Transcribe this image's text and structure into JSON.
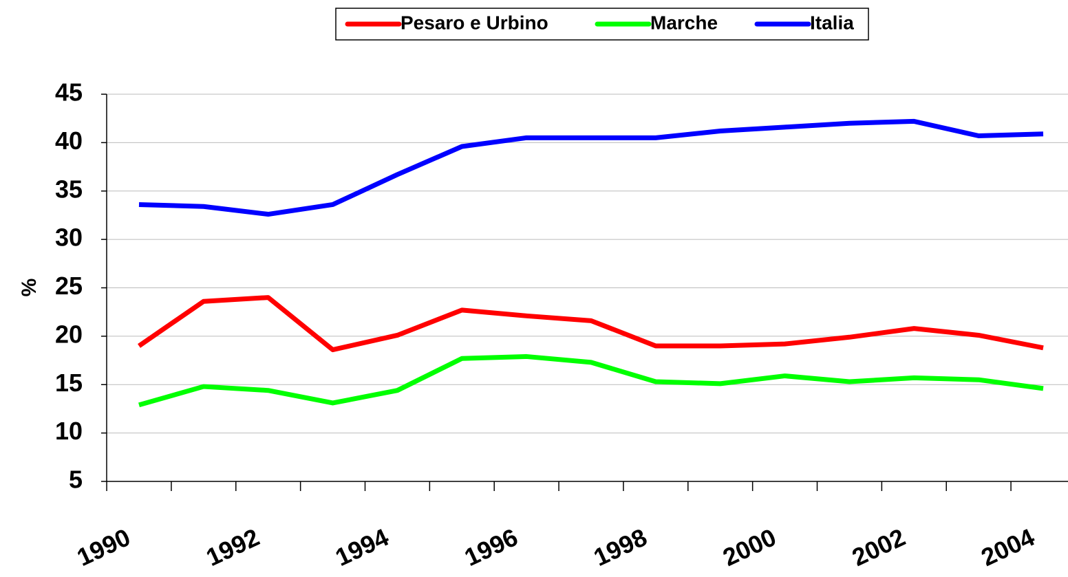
{
  "chart_data": {
    "type": "line",
    "categories": [
      "1990",
      null,
      "1992",
      null,
      "1994",
      null,
      "1996",
      null,
      "1998",
      null,
      "2000",
      null,
      "2002",
      null,
      "2004"
    ],
    "y_label": "%",
    "ylim": [
      5,
      45
    ],
    "yticks": [
      5,
      10,
      15,
      20,
      25,
      30,
      35,
      40,
      45
    ],
    "grid": true,
    "legend": "top",
    "series": [
      {
        "name": "Pesaro e Urbino",
        "color": "#ff0000",
        "values": [
          19.0,
          23.6,
          24.0,
          18.6,
          20.1,
          22.7,
          22.1,
          21.6,
          19.0,
          19.0,
          19.2,
          19.9,
          20.8,
          20.1,
          18.8
        ]
      },
      {
        "name": "Marche",
        "color": "#00ff00",
        "values": [
          12.9,
          14.8,
          14.4,
          13.1,
          14.4,
          17.7,
          17.9,
          17.3,
          15.3,
          15.1,
          15.9,
          15.3,
          15.7,
          15.5,
          14.6
        ]
      },
      {
        "name": "Italia",
        "color": "#0000ff",
        "values": [
          33.6,
          33.4,
          32.6,
          33.6,
          36.7,
          39.6,
          40.5,
          40.5,
          40.5,
          41.2,
          41.6,
          42.0,
          42.2,
          40.7,
          40.9
        ]
      }
    ]
  }
}
